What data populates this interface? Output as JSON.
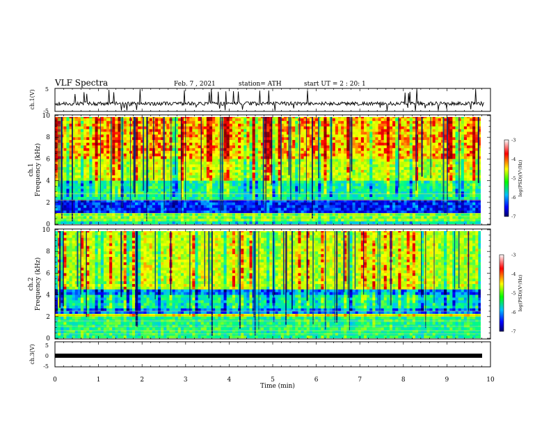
{
  "header": {
    "title": "VLF Spectra",
    "date": "Feb. 7 , 2021",
    "station": "station= ATH",
    "start_ut": "start UT = 2 : 20: 1"
  },
  "chart_data": [
    {
      "type": "line",
      "name": "ch1-waveform",
      "ylabel": "ch.1(V)",
      "ylim": [
        -5,
        5
      ],
      "yticks": [
        "5",
        "-5"
      ],
      "xlim": [
        0,
        10
      ],
      "description": "noisy waveform trace centered near -2 V with frequent spikes to +5 and -5"
    },
    {
      "type": "heatmap",
      "name": "ch1-spectrogram",
      "ylabel": "ch.1\nFrequency (kHz)",
      "ylim": [
        0,
        10
      ],
      "yticks": [
        "0",
        "2",
        "4",
        "6",
        "8",
        "10"
      ],
      "xlim": [
        0,
        9.85
      ],
      "colorbar": {
        "label": "log(PSD)(V²/Hz)",
        "range": [
          -7,
          -3
        ],
        "ticks": [
          "-3",
          "-4",
          "-5",
          "-6",
          "-7"
        ],
        "colors": [
          "#00006b",
          "#0000ff",
          "#00bfff",
          "#00ff80",
          "#ffff00",
          "#ff0000",
          "#8b0000"
        ]
      },
      "bands": [
        {
          "f_min": 0.0,
          "f_max": 0.3,
          "level": -5.5
        },
        {
          "f_min": 0.3,
          "f_max": 1.0,
          "level": -4.8
        },
        {
          "f_min": 1.0,
          "f_max": 2.2,
          "level": -6.3
        },
        {
          "f_min": 2.2,
          "f_max": 4.0,
          "level": -5.3
        },
        {
          "f_min": 4.0,
          "f_max": 6.0,
          "level": -4.5
        },
        {
          "f_min": 6.0,
          "f_max": 10.0,
          "level": -4.0
        }
      ]
    },
    {
      "type": "heatmap",
      "name": "ch2-spectrogram",
      "ylabel": "ch.2\nFrequency (kHz)",
      "ylim": [
        0,
        10
      ],
      "yticks": [
        "0",
        "2",
        "4",
        "6",
        "8",
        "10"
      ],
      "xlim": [
        0,
        9.85
      ],
      "colorbar": {
        "label": "log(PSD)(V²/Hz)",
        "range": [
          -7,
          -3
        ],
        "ticks": [
          "-3",
          "-4",
          "-5",
          "-6",
          "-7"
        ],
        "colors": [
          "#00006b",
          "#0000ff",
          "#00bfff",
          "#00ff80",
          "#ffff00",
          "#ff0000",
          "#8b0000"
        ]
      },
      "bands": [
        {
          "f_min": 0.0,
          "f_max": 2.0,
          "level": -5.2
        },
        {
          "f_min": 2.0,
          "f_max": 2.3,
          "level": -4.3
        },
        {
          "f_min": 2.3,
          "f_max": 2.8,
          "level": -6.0
        },
        {
          "f_min": 2.8,
          "f_max": 4.0,
          "level": -5.4
        },
        {
          "f_min": 4.0,
          "f_max": 4.6,
          "level": -6.0
        },
        {
          "f_min": 4.6,
          "f_max": 10.0,
          "level": -4.5
        }
      ]
    },
    {
      "type": "line",
      "name": "ch3-waveform",
      "ylabel": "ch.3(V)",
      "ylim": [
        -5,
        5
      ],
      "yticks": [
        "5",
        "0",
        "-5"
      ],
      "xlabel": "Time (min)",
      "xlim": [
        0,
        10
      ],
      "xticks": [
        "0",
        "1",
        "2",
        "3",
        "4",
        "5",
        "6",
        "7",
        "8",
        "9",
        "10"
      ],
      "description": "thick nearly flat trace near -1 V"
    }
  ]
}
